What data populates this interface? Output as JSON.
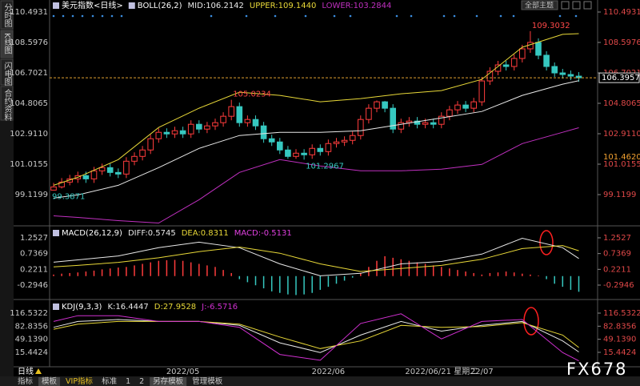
{
  "ui": {
    "tabs": [
      "分时图",
      "K线图",
      "闪电图",
      "合约资料"
    ],
    "period": "日线",
    "top_button": "全部主题",
    "toolbar": [
      "指标",
      "模板",
      "VIP指标",
      "标准",
      "1",
      "2",
      "另存模板",
      "管理模板"
    ],
    "watermark": "FX678"
  },
  "chart_data": [
    {
      "type": "candlestick",
      "title": "美元指数<日线>",
      "indicator": "BOLL(26,2)",
      "categories": [
        null,
        null,
        null,
        null,
        null,
        null,
        null,
        null,
        null,
        null,
        null,
        null,
        null,
        null,
        null,
        null,
        "2022/05",
        null,
        null,
        null,
        null,
        null,
        null,
        null,
        null,
        null,
        null,
        null,
        null,
        null,
        null,
        null,
        null,
        null,
        "2022/06",
        null,
        null,
        null,
        null,
        null,
        null,
        null,
        null,
        null,
        null,
        null,
        null,
        null,
        "2022/06/21 星期二",
        null,
        null,
        null,
        null,
        "22/07",
        null,
        null,
        null,
        null,
        null,
        null,
        null,
        null,
        null,
        null,
        null,
        null
      ],
      "open": [
        99.4,
        99.6,
        99.9,
        100.1,
        100.3,
        100.1,
        100.6,
        100.8,
        100.5,
        100.4,
        101.2,
        101.5,
        101.9,
        102.6,
        103.0,
        102.9,
        103.1,
        102.9,
        103.5,
        103.2,
        103.4,
        103.6,
        104.0,
        104.6,
        103.6,
        103.8,
        103.4,
        102.6,
        102.4,
        101.9,
        101.5,
        101.7,
        101.6,
        102.0,
        101.8,
        102.3,
        102.4,
        102.5,
        102.8,
        103.8,
        104.5,
        104.9,
        104.5,
        103.2,
        103.6,
        103.7,
        103.5,
        103.6,
        103.5,
        104.0,
        104.4,
        104.7,
        104.5,
        104.9,
        106.2,
        106.8,
        107.2,
        107.1,
        107.6,
        108.2,
        108.6,
        107.8,
        107.1,
        106.7,
        106.6,
        106.5
      ],
      "high": [
        99.85,
        100.15,
        100.35,
        100.55,
        100.55,
        100.85,
        101.05,
        101.05,
        100.75,
        101.45,
        101.75,
        102.15,
        102.85,
        103.25,
        103.25,
        103.35,
        103.35,
        103.75,
        103.75,
        103.65,
        103.85,
        104.25,
        105.0234,
        104.85,
        104.05,
        104.05,
        103.65,
        102.85,
        102.65,
        102.15,
        101.95,
        101.95,
        102.25,
        102.25,
        102.55,
        102.65,
        102.75,
        103.05,
        104.05,
        104.75,
        104.98,
        104.95,
        104.75,
        103.85,
        103.95,
        103.95,
        103.85,
        103.85,
        104.25,
        104.65,
        104.95,
        104.95,
        105.15,
        106.45,
        107.05,
        107.45,
        107.45,
        107.85,
        108.45,
        109.3032,
        108.85,
        108.05,
        107.35,
        106.95,
        106.85,
        106.75
      ],
      "low": [
        99.3871,
        99.5,
        99.7,
        99.85,
        99.85,
        99.85,
        100.35,
        100.25,
        100.15,
        100.15,
        100.95,
        101.25,
        101.65,
        102.35,
        102.65,
        102.65,
        102.65,
        102.65,
        102.95,
        102.95,
        103.15,
        103.35,
        103.75,
        103.35,
        103.35,
        103.15,
        102.35,
        102.15,
        101.65,
        101.35,
        101.35,
        101.2967,
        101.35,
        101.55,
        101.55,
        102.05,
        102.15,
        102.25,
        102.55,
        103.55,
        104.25,
        104.25,
        102.95,
        102.95,
        103.35,
        103.25,
        103.25,
        103.25,
        103.25,
        103.75,
        104.15,
        104.25,
        104.25,
        104.65,
        105.95,
        106.55,
        106.85,
        106.85,
        107.35,
        107.95,
        107.55,
        106.85,
        106.45,
        106.35,
        106.25,
        106.15
      ],
      "close": [
        99.6,
        99.9,
        100.1,
        100.3,
        100.1,
        100.6,
        100.8,
        100.5,
        100.4,
        101.2,
        101.5,
        101.9,
        102.6,
        103.0,
        102.9,
        103.1,
        102.9,
        103.5,
        103.2,
        103.4,
        103.6,
        104.0,
        104.6,
        103.6,
        103.8,
        103.4,
        102.6,
        102.4,
        101.9,
        101.5,
        101.7,
        101.6,
        102.0,
        101.8,
        102.3,
        102.4,
        102.5,
        102.8,
        103.8,
        104.5,
        104.9,
        104.5,
        103.2,
        103.6,
        103.7,
        103.5,
        103.6,
        103.5,
        104.0,
        104.4,
        104.7,
        104.5,
        104.9,
        106.2,
        106.8,
        107.2,
        107.1,
        107.6,
        108.2,
        108.6,
        107.8,
        107.1,
        106.7,
        106.6,
        106.5,
        106.3957
      ],
      "up_color": "#ff3c3c",
      "down_color": "#36c8c0",
      "extremes": [
        {
          "index": 0,
          "of": "low"
        },
        {
          "index": 22,
          "of": "high"
        },
        {
          "index": 31,
          "of": "low"
        },
        {
          "index": 59,
          "of": "high"
        }
      ],
      "crosshair_price": {
        "value": 101.462,
        "label": "101.4620"
      },
      "series": [
        {
          "name": "MID:106.2142",
          "color": "#e8e8e8",
          "x": [
            0,
            3,
            8,
            13,
            18,
            23,
            28,
            33,
            38,
            43,
            48,
            53,
            58,
            63,
            65
          ],
          "values": [
            98.9,
            99.1,
            99.7,
            100.8,
            102.0,
            102.8,
            103.0,
            103.0,
            103.1,
            103.5,
            103.9,
            104.3,
            105.3,
            106.0,
            106.2142
          ]
        },
        {
          "name": "UPPER:109.1440",
          "color": "#e8d838",
          "x": [
            0,
            3,
            8,
            13,
            18,
            23,
            28,
            33,
            38,
            43,
            48,
            53,
            58,
            63,
            65
          ],
          "values": [
            99.7,
            100.2,
            101.3,
            103.3,
            104.5,
            105.5,
            105.3,
            104.9,
            105.1,
            105.4,
            105.6,
            106.3,
            108.3,
            109.1,
            109.144
          ]
        },
        {
          "name": "LOWER:103.2844",
          "color": "#c030c0",
          "x": [
            0,
            3,
            8,
            13,
            18,
            23,
            28,
            33,
            38,
            43,
            48,
            53,
            58,
            63,
            65
          ],
          "values": [
            97.8,
            97.7,
            97.5,
            97.35,
            98.8,
            100.5,
            101.3,
            100.9,
            100.6,
            100.6,
            100.7,
            101.0,
            102.3,
            103.0,
            103.2844
          ]
        }
      ],
      "ylim": [
        97.275,
        110.842
      ],
      "yticks": [
        99.1199,
        101.0155,
        {
          "value": 102.911,
          "label": "102.9110"
        },
        104.8065,
        106.7021,
        108.5976,
        110.4931
      ],
      "grid": false
    },
    {
      "type": "macd",
      "title": "MACD(26,12,9)",
      "series": [
        {
          "name": "DIFF:0.5745",
          "color": "#e8e8e8",
          "x": [
            0,
            3,
            8,
            13,
            18,
            23,
            28,
            33,
            38,
            43,
            48,
            53,
            58,
            63,
            65
          ],
          "values": [
            0.456,
            0.53,
            0.66,
            0.93,
            1.11,
            0.93,
            0.4,
            0.01,
            0.09,
            0.4,
            0.48,
            0.72,
            1.24,
            0.93,
            0.5745
          ]
        },
        {
          "name": "DEA:0.8311",
          "color": "#e8d838",
          "x": [
            0,
            3,
            8,
            13,
            18,
            23,
            28,
            33,
            38,
            43,
            48,
            53,
            58,
            63,
            65
          ],
          "values": [
            0.3,
            0.35,
            0.45,
            0.6,
            0.8,
            0.95,
            0.75,
            0.4,
            0.15,
            0.25,
            0.35,
            0.55,
            0.9,
            1.0,
            0.8311
          ]
        },
        {
          "name": "MACD:-0.5131",
          "color": "#e040e0",
          "up_color": "#ff3c3c",
          "down_color": "#36c8c0",
          "values": [
            0.05,
            0.08,
            0.1,
            0.12,
            0.15,
            0.18,
            0.22,
            0.25,
            0.28,
            0.3,
            0.35,
            0.4,
            0.45,
            0.5,
            0.52,
            0.53,
            0.5,
            0.45,
            0.4,
            0.35,
            0.3,
            0.2,
            0.1,
            -0.1,
            -0.2,
            -0.3,
            -0.4,
            -0.5,
            -0.55,
            -0.6,
            -0.62,
            -0.6,
            -0.55,
            -0.45,
            -0.35,
            -0.25,
            -0.15,
            -0.05,
            0.1,
            0.3,
            0.5,
            0.65,
            0.6,
            0.55,
            0.5,
            0.45,
            0.4,
            0.35,
            0.3,
            0.25,
            0.2,
            0.15,
            0.1,
            0.05,
            0.1,
            0.12,
            0.15,
            0.12,
            0.08,
            0.05,
            0.02,
            -0.1,
            -0.25,
            -0.35,
            -0.45,
            -0.5131
          ]
        }
      ],
      "ylim": [
        -0.714,
        1.619
      ],
      "yticks": [
        -0.2946,
        0.2211,
        0.7369,
        1.2527
      ],
      "grid": false
    },
    {
      "type": "kdj",
      "title": "KDJ(9,3,3)",
      "series": [
        {
          "name": "K:16.4447",
          "color": "#e8e8e8",
          "x": [
            0,
            3,
            8,
            13,
            18,
            23,
            28,
            33,
            38,
            43,
            48,
            53,
            58,
            63,
            65
          ],
          "values": [
            80,
            95,
            100,
            95,
            95,
            85,
            40,
            15,
            60,
            95,
            70,
            85,
            95,
            45,
            16.4447
          ]
        },
        {
          "name": "D:27.9528",
          "color": "#e8d838",
          "x": [
            0,
            3,
            8,
            13,
            18,
            23,
            28,
            33,
            38,
            43,
            48,
            53,
            58,
            63,
            65
          ],
          "values": [
            75,
            88,
            95,
            95,
            95,
            88,
            55,
            25,
            45,
            85,
            80,
            82,
            92,
            60,
            27.9528
          ]
        },
        {
          "name": "J:-6.5716",
          "color": "#d030d0",
          "x": [
            0,
            3,
            8,
            13,
            18,
            23,
            28,
            33,
            38,
            43,
            48,
            53,
            58,
            63,
            65
          ],
          "values": [
            95,
            110,
            110,
            95,
            95,
            80,
            10,
            -5,
            90,
            115,
            50,
            95,
            100,
            15,
            -6.5716
          ]
        }
      ],
      "ylim": [
        -21.8,
        149.6
      ],
      "yticks": [
        15.4424,
        {
          "value": 49.139,
          "label": "49.1390"
        },
        82.8356,
        116.5322
      ],
      "grid": false
    }
  ]
}
